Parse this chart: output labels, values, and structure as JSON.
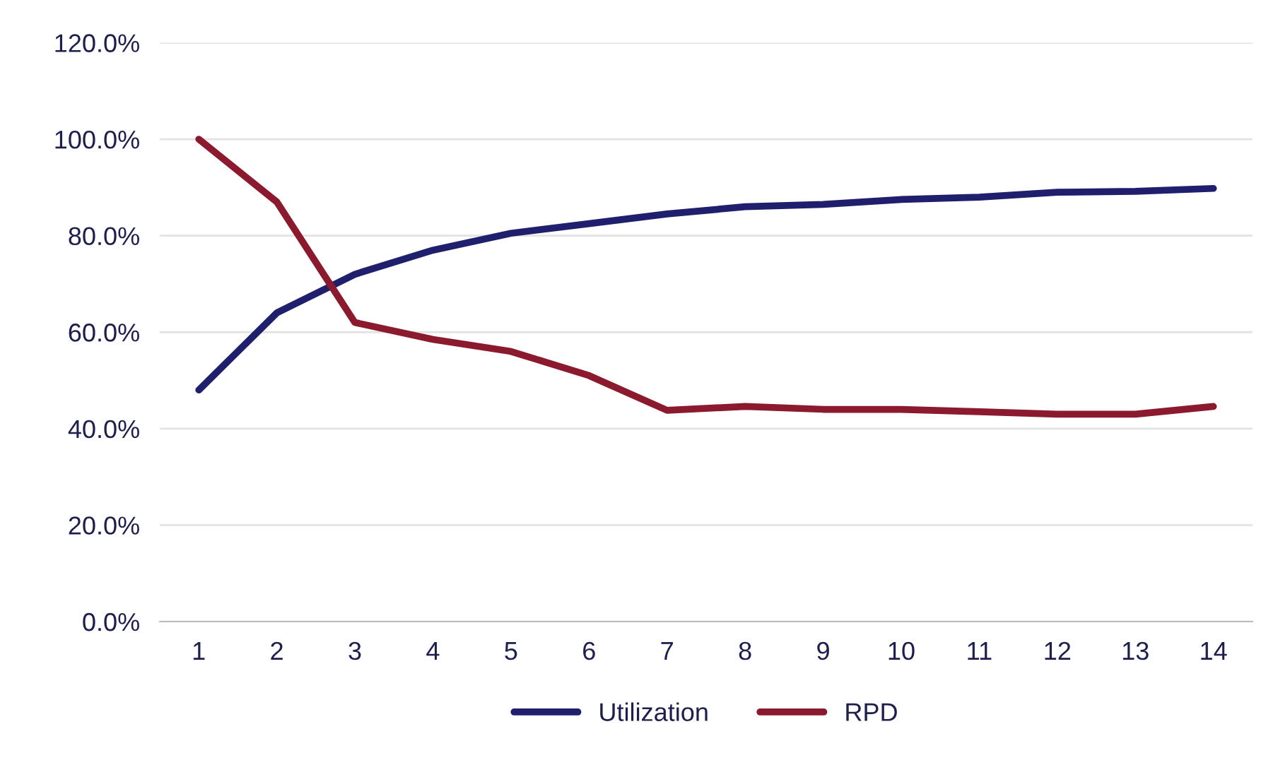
{
  "chart_data": {
    "type": "line",
    "categories": [
      "1",
      "2",
      "3",
      "4",
      "5",
      "6",
      "7",
      "8",
      "9",
      "10",
      "11",
      "12",
      "13",
      "14"
    ],
    "series": [
      {
        "name": "Utilization",
        "color": "#1f1f6e",
        "values": [
          48,
          64,
          72,
          77,
          80.5,
          82.5,
          84.5,
          86,
          86.5,
          87.5,
          88,
          89,
          89.2,
          89.8
        ]
      },
      {
        "name": "RPD",
        "color": "#8b1a2e",
        "values": [
          100,
          87,
          62,
          58.5,
          56,
          51,
          43.8,
          44.6,
          44,
          44,
          43.5,
          43,
          43,
          44.6
        ]
      }
    ],
    "ylim": [
      0,
      120
    ],
    "yticks": [
      {
        "value": 0,
        "label": "0.0%"
      },
      {
        "value": 20,
        "label": "20.0%"
      },
      {
        "value": 40,
        "label": "40.0%"
      },
      {
        "value": 60,
        "label": "60.0%"
      },
      {
        "value": 80,
        "label": "80.0%"
      },
      {
        "value": 100,
        "label": "100.0%"
      },
      {
        "value": 120,
        "label": "120.0%"
      }
    ],
    "grid": "y",
    "legend": "bottom",
    "marker": "none",
    "line_style": "solid"
  }
}
